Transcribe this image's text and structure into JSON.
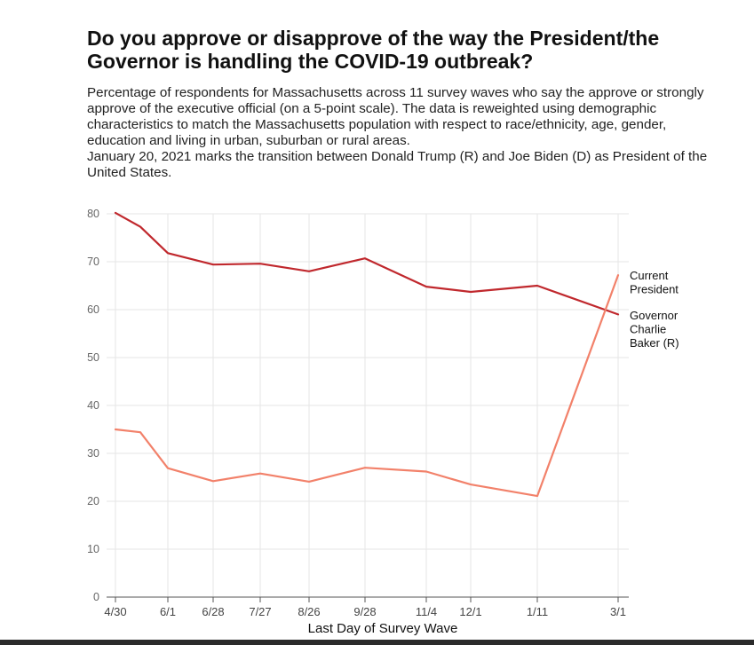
{
  "header": {
    "title": "Do you approve or disapprove of the way the President/the Governor is handling the COVID-19 outbreak?",
    "subtitle": "Percentage of respondents for Massachusetts across 11 survey waves who say the approve or strongly approve of the executive official (on a 5-point scale). The data is reweighted using demographic characteristics to match the Massachusetts population with respect to race/ethnicity, age, gender, education and living in urban, suburban or rural areas.",
    "note": "January 20, 2021 marks the transition between Donald Trump (R) and Joe Biden (D) as President of the United States."
  },
  "chart_data": {
    "type": "line",
    "x": [
      "4/30",
      "5/15",
      "6/1",
      "6/28",
      "7/27",
      "8/26",
      "9/28",
      "11/4",
      "12/1",
      "1/11",
      "3/1"
    ],
    "x_tick_labels": [
      "4/30",
      "6/1",
      "6/28",
      "7/27",
      "8/26",
      "9/28",
      "11/4",
      "12/1",
      "1/11",
      "3/1"
    ],
    "xlabel": "Last Day of Survey Wave",
    "ylabel": "",
    "ylim": [
      0,
      80
    ],
    "y_ticks": [
      0,
      10,
      20,
      30,
      40,
      50,
      60,
      70,
      80
    ],
    "grid": true,
    "legend_placement": "right, at line ends",
    "series": [
      {
        "name": "Governor Charlie Baker (R)",
        "label_lines": [
          "Governor",
          "Charlie",
          "Baker (R)"
        ],
        "color": "#c0282d",
        "values": [
          80.2,
          77.3,
          71.8,
          69.4,
          69.6,
          68.0,
          70.7,
          64.8,
          63.7,
          65.0,
          59.0
        ]
      },
      {
        "name": "Current President",
        "label_lines": [
          "Current",
          "President"
        ],
        "color": "#f2816a",
        "values": [
          35.0,
          34.4,
          26.9,
          24.2,
          25.8,
          24.1,
          27.0,
          26.2,
          23.5,
          21.1,
          67.2
        ]
      }
    ]
  },
  "colors": {
    "grid": "#e6e6e6",
    "axis": "#555555",
    "bottom_bar": "#2b2b2b"
  }
}
